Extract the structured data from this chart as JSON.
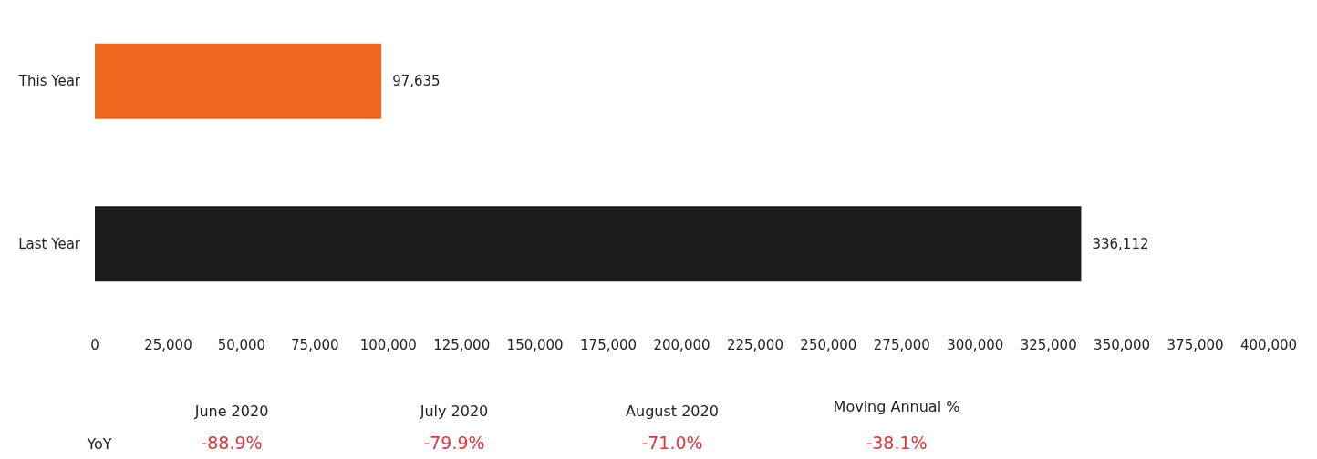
{
  "chart_data": {
    "type": "bar",
    "orientation": "horizontal",
    "categories": [
      "This Year",
      "Last Year"
    ],
    "values": [
      97635,
      336112
    ],
    "value_labels": [
      "97,635",
      "336,112"
    ],
    "colors": [
      "#ec681e",
      "#1c1b1a"
    ],
    "xlim": [
      0,
      400000
    ],
    "xticks": [
      0,
      {
        "value": 25000,
        "label": "25,000"
      },
      {
        "value": 50000,
        "label": "50,000"
      },
      {
        "value": 75000,
        "label": "75,000"
      },
      {
        "value": 100000,
        "label": "100,000"
      },
      {
        "value": 125000,
        "label": "125,000"
      },
      {
        "value": 150000,
        "label": "150,000"
      },
      {
        "value": 175000,
        "label": "175,000"
      },
      {
        "value": 200000,
        "label": "200,000"
      },
      {
        "value": 225000,
        "label": "225,000"
      },
      {
        "value": 250000,
        "label": "250,000"
      },
      {
        "value": 275000,
        "label": "275,000"
      },
      {
        "value": 300000,
        "label": "300,000"
      },
      {
        "value": 325000,
        "label": "325,000"
      },
      {
        "value": 350000,
        "label": "350,000"
      },
      {
        "value": 375000,
        "label": "375,000"
      },
      {
        "value": 400000,
        "label": "400,000"
      }
    ],
    "grid": false,
    "annotations": [
      "June 2020",
      "July 2020",
      "August 2020",
      "Moving Annual %",
      "YoY",
      "-88.9%",
      "-79.9%",
      "-71.0%",
      "-38.1%"
    ]
  }
}
